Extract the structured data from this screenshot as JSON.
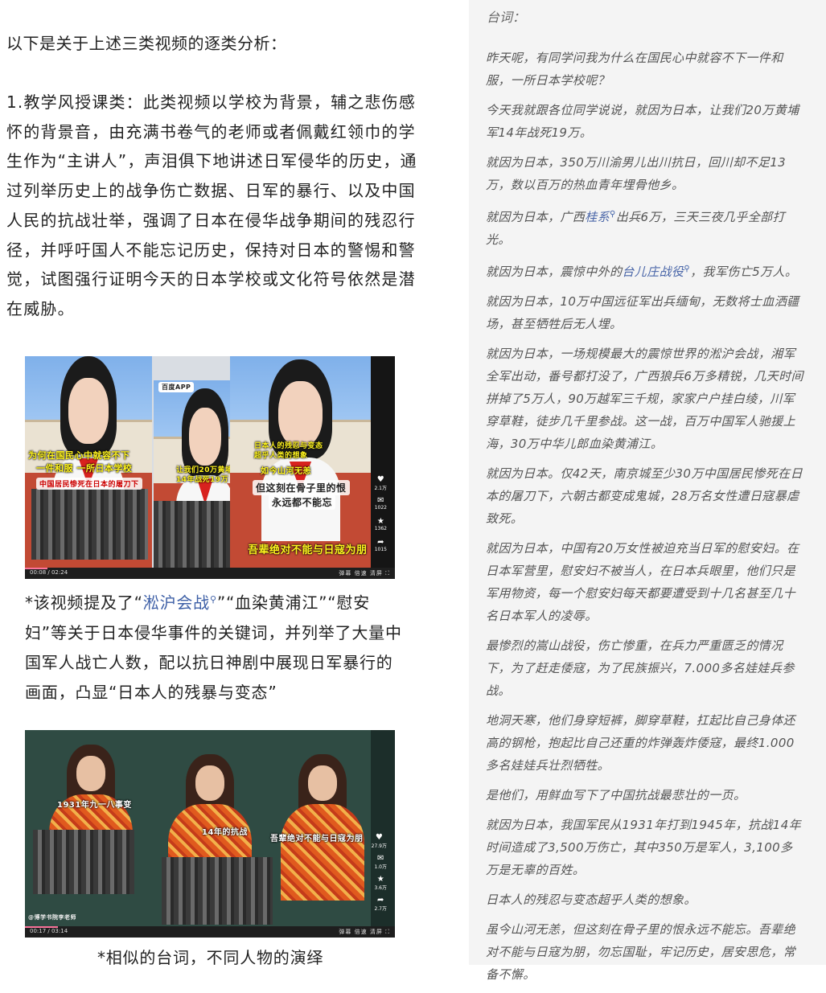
{
  "left": {
    "intro": "以下是关于上述三类视频的逐类分析：",
    "paragraph": "1.教学风授课类：此类视频以学校为背景，辅之悲伤感怀的背景音，由充满书卷气的老师或者佩戴红领巾的学生作为“主讲人”，声泪俱下地讲述日军侵华的历史，通过列举历史上的战争伤亡数据、日军的暴行、以及中国人民的抗战壮举，强调了日本在侵华战争期间的残忍行径，并呼吁国人不能忘记历史，保持对日本的警惕和警觉，试图强行证明今天的日本学校或文化符号依然是潜在威胁。",
    "video1": {
      "captions": [
        "为何在国民心中就容不下",
        "一件和服 一所日本学校",
        "中国居民惨死在日本的屠刀下",
        "让我们20万黄埔",
        "14年战死19万",
        "日本人的残忍与变态",
        "超乎人类的想象",
        "如今山河无恙",
        "但这刻在骨子里的恨",
        "永远都不能忘",
        "吾辈绝对不能与日寇为朋"
      ],
      "app_badge": "百度APP",
      "side_counts": [
        "2.1万",
        "1022",
        "1362",
        "1015"
      ],
      "time": "00:08 / 02:24",
      "controls": "弹幕  倍速  清屏  ⛶",
      "progress": 0.06
    },
    "caption1": {
      "before": "*该视频提及了“",
      "link": "淞沪会战",
      "after": "”“血染黄浦江”“慰安妇”等关于日本侵华事件的关键词，并列举了大量中国军人战亡人数，配以抗日神剧中展现日军暴行的画面，凸显“日本人的残暴与变态”"
    },
    "video2": {
      "captions": [
        "1931年九一八事变",
        "14年的抗战",
        "吾辈绝对不能与日寇为朋"
      ],
      "side_counts": [
        "27.9万",
        "1.0万",
        "3.6万",
        "2.7万"
      ],
      "account": "@博学书院李老师",
      "time": "00:17 / 03:14",
      "controls": "弹幕  倍速  清屏  ⛶",
      "progress": 0.09
    },
    "caption2": "*相似的台词，不同人物的演绎"
  },
  "right": {
    "heading": "台词：",
    "lines": [
      "昨天呢，有同学问我为什么在国民心中就容不下一件和服，一所日本学校呢？",
      "今天我就跟各位同学说说，就因为日本，让我们20万黄埔军14年战死19万。",
      "就因为日本，350万川渝男儿出川抗日，回川却不足13万，数以百万的热血青年埋骨他乡。",
      "就因为日本，10万中国远征军出兵缅甸，无数将士血洒疆场，甚至牺牲后无人埋。",
      "就因为日本，一场规模最大的震惊世界的淞沪会战，湘军全军出动，番号都打没了，广西狼兵6万多精锐，几天时间拼掉了5万人，90万越军三千规，家家户户挂白绫，川军穿草鞋，徒步几千里参战。这一战，百万中国军人驰援上海，30万中华儿郎血染黄浦江。",
      "就因为日本。仅42天，南京城至少30万中国居民惨死在日本的屠刀下，六朝古都变成鬼城，28万名女性遭日寇暴虐致死。",
      "就因为日本，中国有20万女性被迫充当日军的慰安妇。在日本军营里，慰安妇不被当人，在日本兵眼里，他们只是军用物资，每一个慰安妇每天都要遭受到十几名甚至几十名日本军人的凌辱。",
      "最惨烈的嵩山战役，伤亡惨重，在兵力严重匮乏的情况下，为了赶走倭寇，为了民族振兴，7.000多名娃娃兵参战。",
      "地洞天寒，他们身穿短裤，脚穿草鞋，扛起比自己身体还高的钢枪，抱起比自己还重的炸弹轰炸倭寇，最终1.000多名娃娃兵壮烈牺牲。",
      "是他们，用鲜血写下了中国抗战最悲壮的一页。",
      "就因为日本，我国军民从1931年打到1945年，抗战14年时间造成了3,500万伤亡，其中350万是军人，3,100多万是无辜的百姓。",
      "日本人的残忍与变态超乎人类的想象。",
      "虽今山河无恙，但这刻在骨子里的恨永远不能忘。吾辈绝对不能与日寇为朋，勿忘国耻，牢记历史，居安思危，常备不懈。"
    ],
    "guangxi_line": {
      "before": "就因为日本，广西",
      "link": "桂系",
      "after": "出兵6万，三天三夜几乎全部打光。"
    },
    "taierzhuang_line": {
      "before": "就因为日本，震惊中外的",
      "link": "台儿庄战役",
      "after": "，我军伤亡5万人。"
    }
  },
  "icons": {
    "search_marker": "magnifier-icon"
  },
  "colors": {
    "link": "#3d5fa6",
    "subtitle_yellow": "#fff41e",
    "panel_bg": "#f4f4f4"
  }
}
